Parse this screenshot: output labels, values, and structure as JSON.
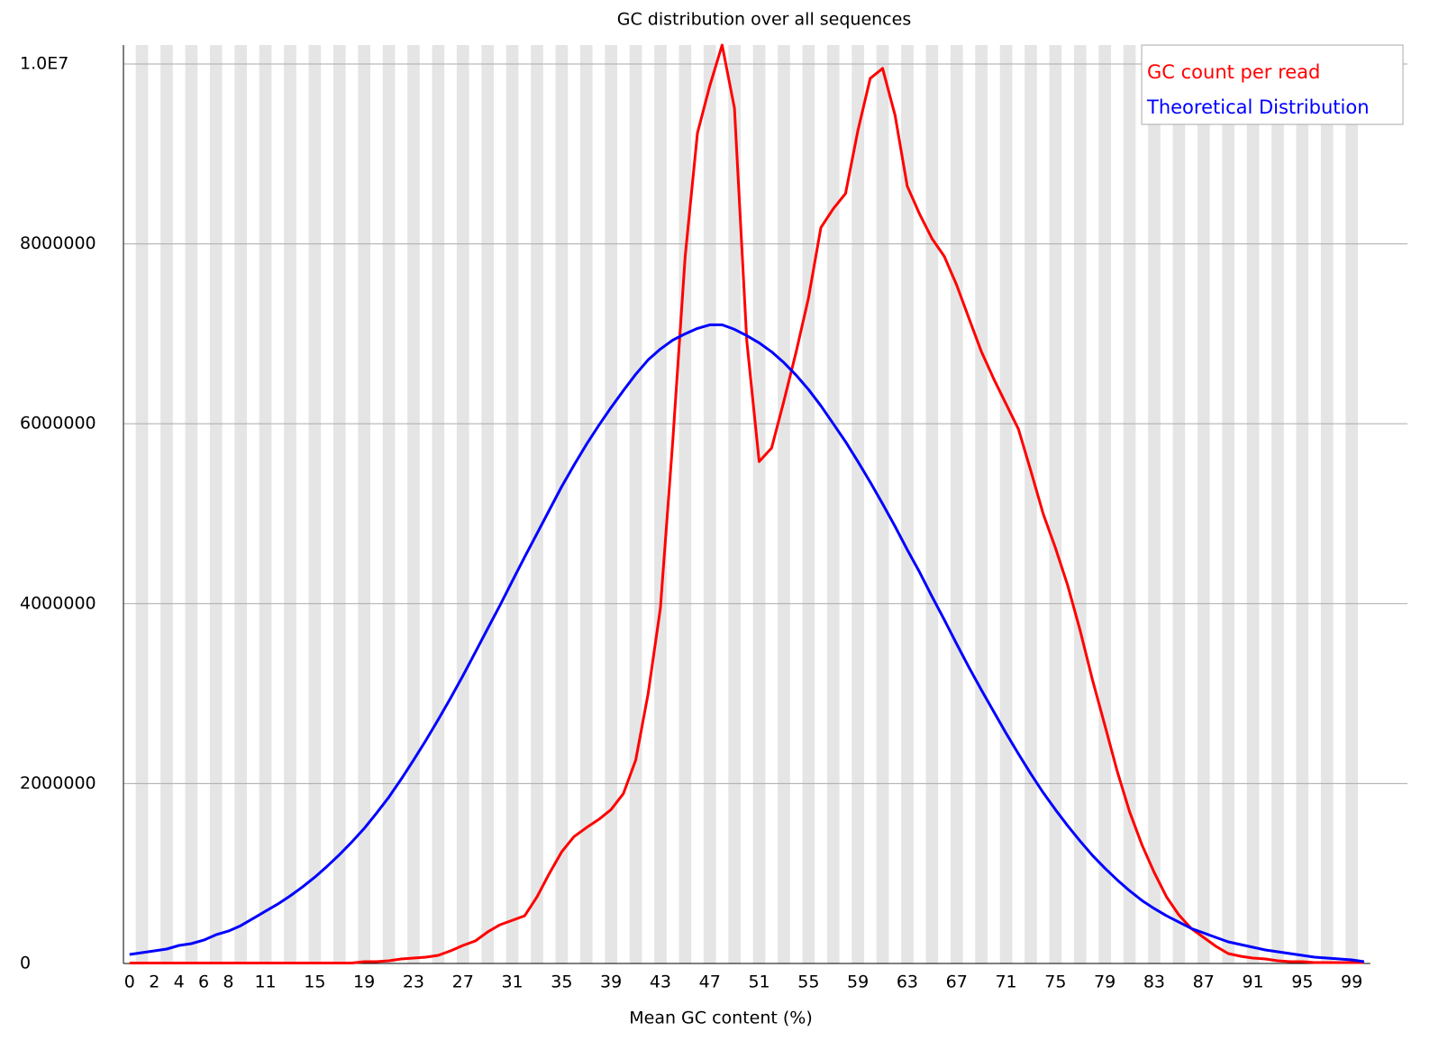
{
  "chart_data": {
    "type": "line",
    "title": "GC distribution over all sequences",
    "x_label": "Mean GC content (%)",
    "categories": [
      "0",
      null,
      "2",
      null,
      "4",
      null,
      "6",
      null,
      "8",
      null,
      null,
      "11",
      null,
      null,
      null,
      "15",
      null,
      null,
      null,
      "19",
      null,
      null,
      null,
      "23",
      null,
      null,
      null,
      "27",
      null,
      null,
      null,
      "31",
      null,
      null,
      null,
      "35",
      null,
      null,
      null,
      "39",
      null,
      null,
      null,
      "43",
      null,
      null,
      null,
      "47",
      null,
      null,
      null,
      "51",
      null,
      null,
      null,
      "55",
      null,
      null,
      null,
      "59",
      null,
      null,
      null,
      "63",
      null,
      null,
      null,
      "67",
      null,
      null,
      null,
      "71",
      null,
      null,
      null,
      "75",
      null,
      null,
      null,
      "79",
      null,
      null,
      null,
      "83",
      null,
      null,
      null,
      "87",
      null,
      null,
      null,
      "91",
      null,
      null,
      null,
      "95",
      null,
      null,
      null,
      "99",
      null
    ],
    "series": [
      {
        "name": "GC count per read",
        "color": "#ff0000",
        "values": [
          5000,
          5000,
          5000,
          5000,
          5000,
          5000,
          5000,
          5000,
          5000,
          5000,
          5000,
          5000,
          5000,
          5000,
          5000,
          5000,
          5000,
          5000,
          5000,
          20000,
          20000,
          30000,
          50000,
          60000,
          70000,
          90000,
          140000,
          200000,
          250000,
          350000,
          430000,
          480000,
          530000,
          740000,
          1000000,
          1240000,
          1410000,
          1510000,
          1600000,
          1710000,
          1890000,
          2260000,
          3000000,
          3950000,
          5800000,
          7860000,
          9230000,
          9760000,
          10210000,
          9510000,
          6920000,
          5580000,
          5730000,
          6250000,
          6800000,
          7400000,
          8180000,
          8390000,
          8560000,
          9260000,
          9840000,
          9950000,
          9430000,
          8640000,
          8330000,
          8060000,
          7860000,
          7540000,
          7170000,
          6800000,
          6500000,
          6220000,
          5940000,
          5480000,
          5000000,
          4620000,
          4200000,
          3700000,
          3150000,
          2650000,
          2140000,
          1690000,
          1320000,
          1010000,
          740000,
          540000,
          390000,
          290000,
          190000,
          110000,
          80000,
          60000,
          50000,
          30000,
          20000,
          20000,
          10000,
          10000,
          10000,
          10000,
          10000
        ]
      },
      {
        "name": "Theoretical Distribution",
        "color": "#0000ff",
        "values": [
          100000,
          120000,
          140000,
          160000,
          200000,
          220000,
          260000,
          320000,
          360000,
          420000,
          500000,
          580000,
          660000,
          750000,
          850000,
          960000,
          1080000,
          1210000,
          1350000,
          1500000,
          1670000,
          1850000,
          2050000,
          2260000,
          2480000,
          2710000,
          2950000,
          3200000,
          3460000,
          3720000,
          3980000,
          4250000,
          4520000,
          4780000,
          5040000,
          5300000,
          5540000,
          5770000,
          5980000,
          6180000,
          6370000,
          6550000,
          6710000,
          6830000,
          6930000,
          7000000,
          7060000,
          7100000,
          7100000,
          7050000,
          6980000,
          6900000,
          6800000,
          6680000,
          6540000,
          6380000,
          6200000,
          6000000,
          5800000,
          5580000,
          5350000,
          5110000,
          4860000,
          4600000,
          4350000,
          4080000,
          3820000,
          3550000,
          3290000,
          3040000,
          2800000,
          2560000,
          2330000,
          2110000,
          1900000,
          1710000,
          1530000,
          1360000,
          1200000,
          1060000,
          930000,
          810000,
          700000,
          610000,
          530000,
          460000,
          390000,
          340000,
          290000,
          240000,
          210000,
          180000,
          150000,
          130000,
          110000,
          90000,
          70000,
          60000,
          50000,
          40000,
          20000
        ]
      }
    ],
    "ylim": [
      0,
      10210000
    ],
    "yticks": [
      0,
      2000000,
      4000000,
      6000000,
      8000000,
      {
        "value": 10000000,
        "label": "1.0E7"
      }
    ],
    "grid": true,
    "legend": "top-right"
  }
}
